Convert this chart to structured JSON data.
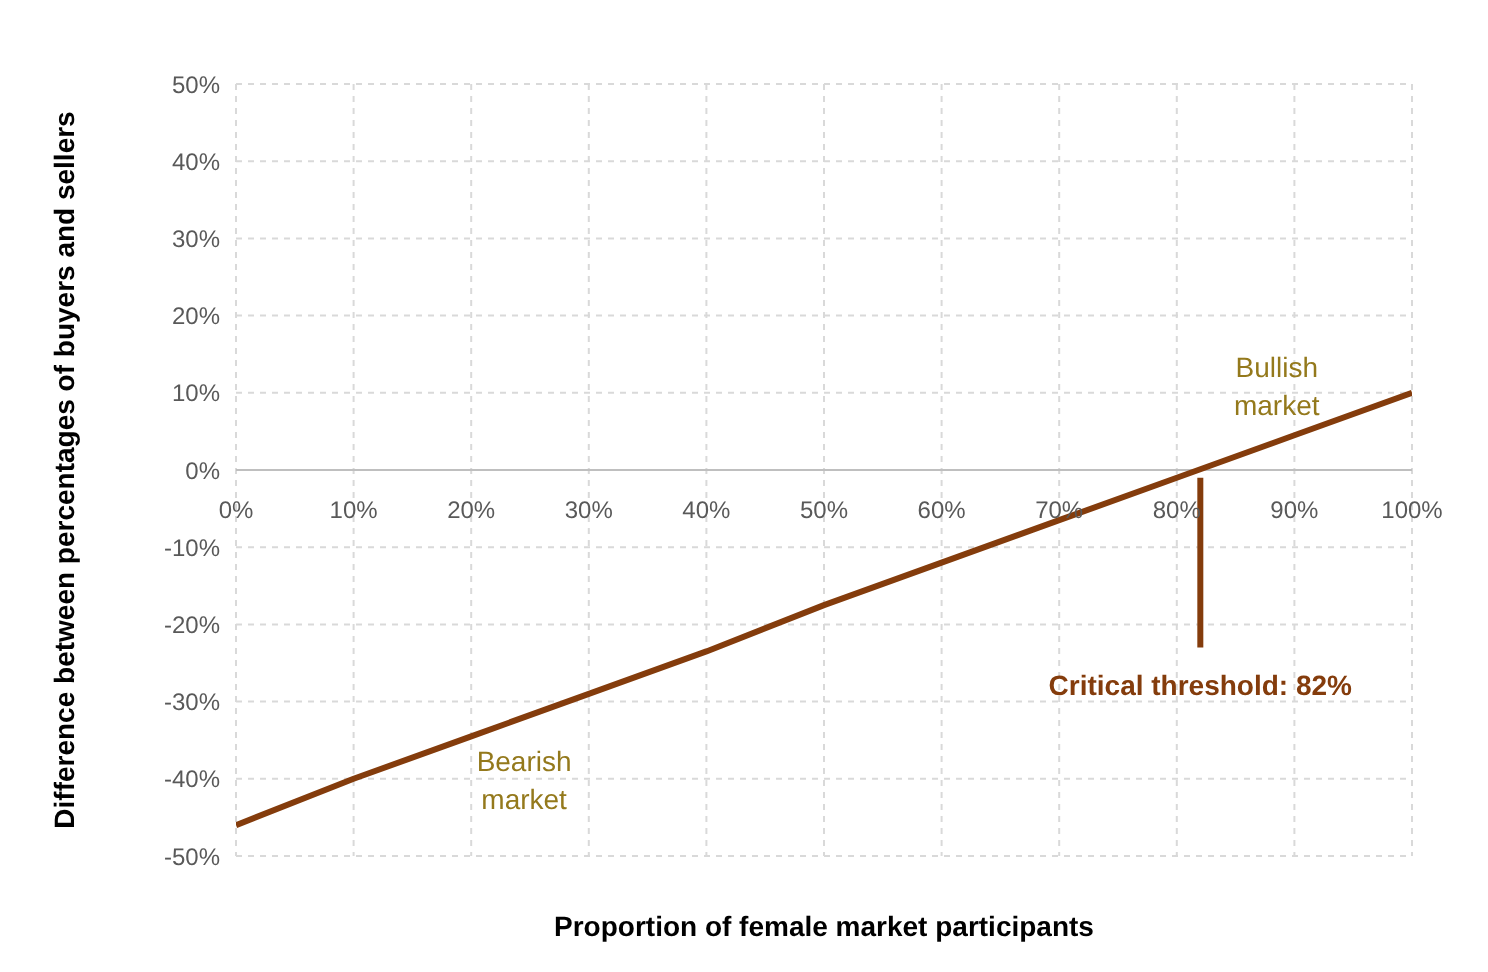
{
  "chart_data": {
    "type": "line",
    "xlabel": "Proportion of female market participants",
    "ylabel": "Difference between percentages of buyers and sellers",
    "x": [
      0,
      10,
      20,
      30,
      40,
      50,
      60,
      70,
      80,
      90,
      100
    ],
    "series": [
      {
        "color": "#843c0c",
        "values": [
          -46,
          -40,
          -34.5,
          -29,
          -23.5,
          -17.5,
          -12,
          -6.5,
          -1,
          4.5,
          10
        ]
      }
    ],
    "xlim": [
      0,
      100
    ],
    "xticks": [
      {
        "value": 0,
        "label": "0%"
      },
      {
        "value": 10,
        "label": "10%"
      },
      {
        "value": 20,
        "label": "20%"
      },
      {
        "value": 30,
        "label": "30%"
      },
      {
        "value": 40,
        "label": "40%"
      },
      {
        "value": 50,
        "label": "50%"
      },
      {
        "value": 60,
        "label": "60%"
      },
      {
        "value": 70,
        "label": "70%"
      },
      {
        "value": 80,
        "label": "80%"
      },
      {
        "value": 90,
        "label": "90%"
      },
      {
        "value": 100,
        "label": "100%"
      }
    ],
    "ylim": [
      -50,
      50
    ],
    "yticks": [
      {
        "value": -50,
        "label": "-50%"
      },
      {
        "value": -40,
        "label": "-40%"
      },
      {
        "value": -30,
        "label": "-30%"
      },
      {
        "value": -20,
        "label": "-20%"
      },
      {
        "value": -10,
        "label": "-10%"
      },
      {
        "value": 0,
        "label": "0%"
      },
      {
        "value": 10,
        "label": "10%"
      },
      {
        "value": 20,
        "label": "20%"
      },
      {
        "value": 30,
        "label": "30%"
      },
      {
        "value": 40,
        "label": "40%"
      },
      {
        "value": 50,
        "label": "50%"
      }
    ],
    "ref_lines": [
      {
        "axis": "x",
        "value": 82,
        "label": "Critical threshold: 82%",
        "color": "#843c0c"
      }
    ],
    "annotations": [
      "Bullish market",
      "Bearish market"
    ],
    "grid": true,
    "marker": "none",
    "line_style": "solid"
  }
}
